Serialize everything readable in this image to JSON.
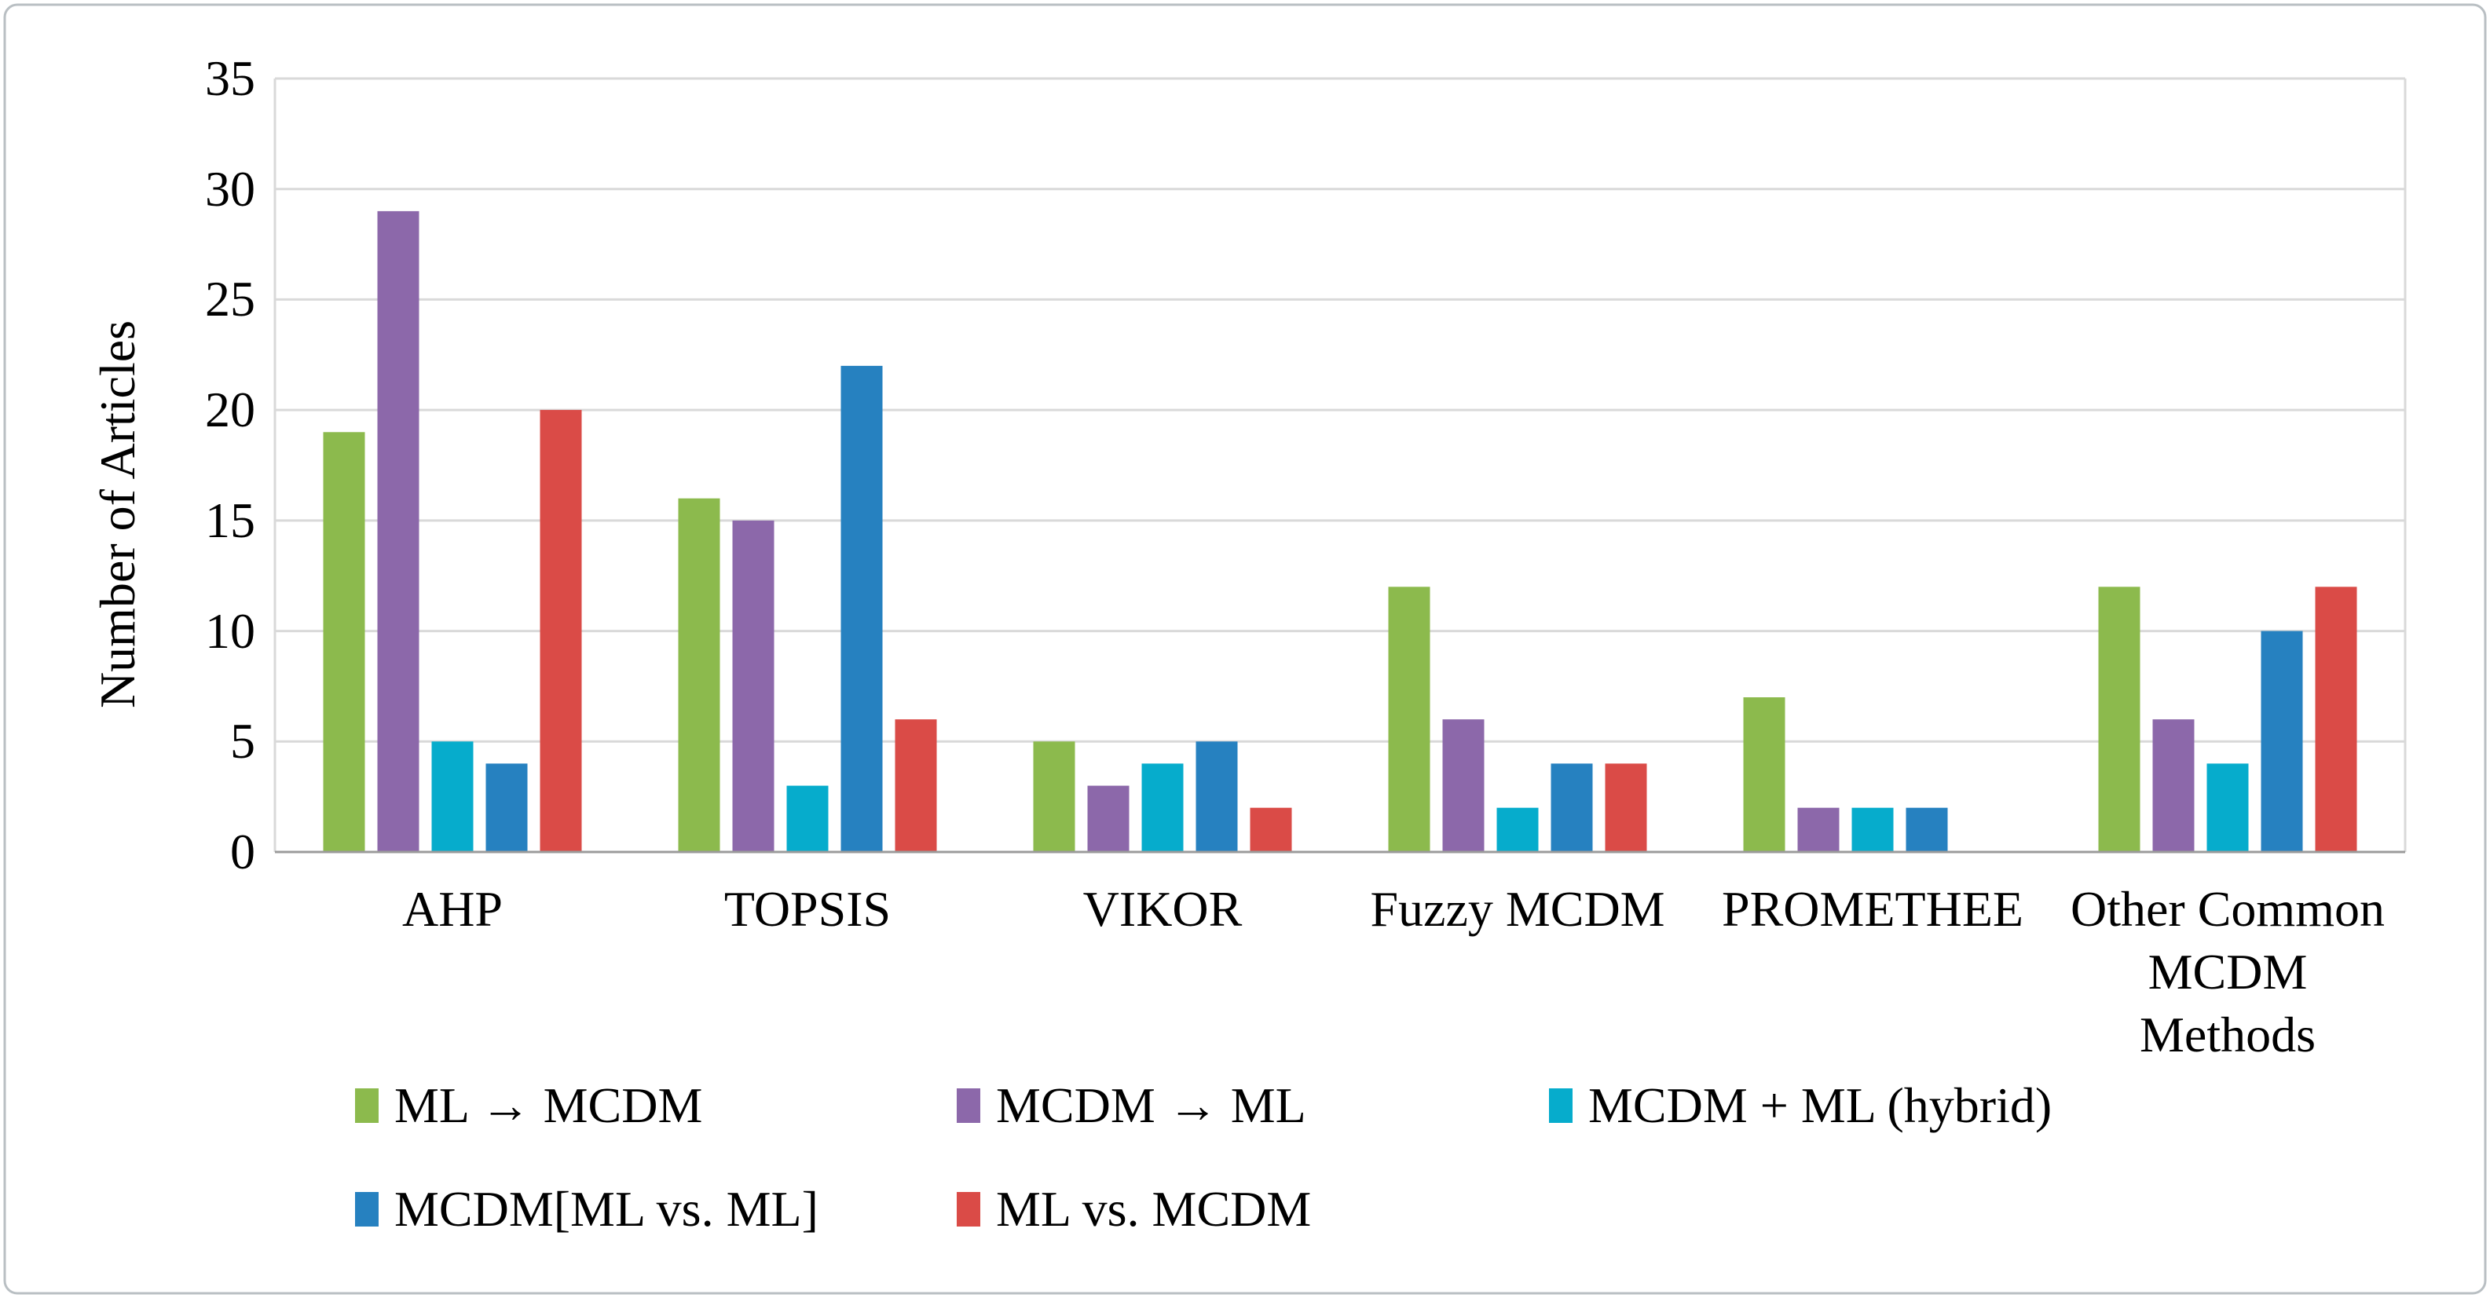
{
  "figure": {
    "background": "#ffffff",
    "border_color": "#b9bfc3"
  },
  "chart_data": {
    "type": "bar",
    "title": "",
    "ylabel": "Number of Articles",
    "xlabel": "",
    "ylim": [
      0,
      35
    ],
    "yticks": [
      0,
      5,
      10,
      15,
      20,
      25,
      30,
      35
    ],
    "grid": "horizontal-only",
    "gridline_color": "#d9d9d9",
    "axis_line_color": "#9b9b9b",
    "plot_border_color": "#d9d9d9",
    "legend_position": "bottom",
    "categories": [
      "AHP",
      "TOPSIS",
      "VIKOR",
      "Fuzzy MCDM",
      "PROMETHEE",
      "Other Common MCDM Methods"
    ],
    "category_display": [
      [
        "AHP"
      ],
      [
        "TOPSIS"
      ],
      [
        "VIKOR"
      ],
      [
        "Fuzzy MCDM"
      ],
      [
        "PROMETHEE"
      ],
      [
        "Other Common",
        "MCDM",
        "Methods"
      ]
    ],
    "series": [
      {
        "name": "ML → MCDM",
        "color": "#8cba4d",
        "values": [
          19,
          16,
          5,
          12,
          7,
          12
        ]
      },
      {
        "name": "MCDM → ML",
        "color": "#8c68aa",
        "values": [
          29,
          15,
          3,
          6,
          2,
          6
        ]
      },
      {
        "name": "MCDM + ML (hybrid)",
        "color": "#06accc",
        "values": [
          5,
          3,
          4,
          2,
          2,
          4
        ]
      },
      {
        "name": "MCDM[ML vs. ML]",
        "color": "#2681c0",
        "values": [
          4,
          22,
          5,
          4,
          2,
          10
        ]
      },
      {
        "name": "ML vs. MCDM",
        "color": "#da4b47",
        "values": [
          20,
          6,
          2,
          4,
          0,
          12
        ]
      }
    ],
    "legend_rows": [
      [
        0,
        1,
        2
      ],
      [
        3,
        4
      ]
    ]
  }
}
